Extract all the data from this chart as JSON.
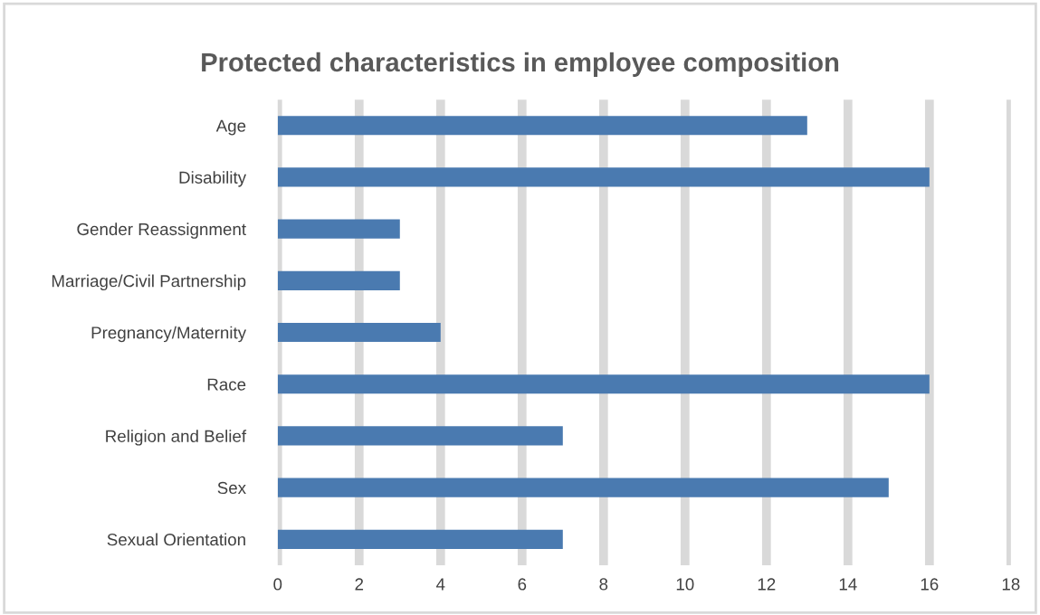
{
  "chart_data": {
    "type": "bar",
    "orientation": "horizontal",
    "title": "Protected characteristics in employee composition",
    "categories": [
      "Age",
      "Disability",
      "Gender Reassignment",
      "Marriage/Civil Partnership",
      "Pregnancy/Maternity",
      "Race",
      "Religion and Belief",
      "Sex",
      "Sexual Orientation"
    ],
    "values": [
      13,
      16,
      3,
      3,
      4,
      16,
      7,
      15,
      7
    ],
    "color": "#4a7ab0",
    "xlim": [
      0,
      18
    ],
    "xticks": [
      0,
      2,
      4,
      6,
      8,
      10,
      12,
      14,
      16,
      18
    ],
    "grid": "x"
  }
}
